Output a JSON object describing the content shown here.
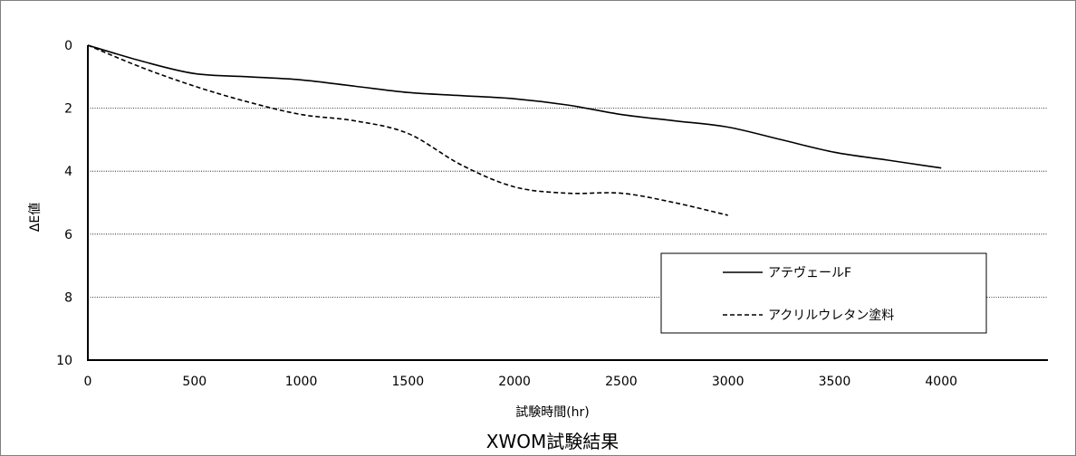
{
  "chart_data": {
    "type": "line",
    "title": "XWOM試験結果",
    "xlabel": "試験時間(hr)",
    "ylabel": "ΔE値",
    "xlim": [
      0,
      4500
    ],
    "ylim": [
      10,
      0
    ],
    "y_inverted": true,
    "x_ticks": [
      "0",
      "500",
      "1000",
      "1500",
      "2000",
      "2500",
      "3000",
      "3500",
      "4000"
    ],
    "y_ticks": [
      "0",
      "2",
      "4",
      "6",
      "8",
      "10"
    ],
    "grid": "horizontal-dotted",
    "legend_position": "lower-right",
    "series": [
      {
        "name": "アテヴェールF",
        "style": "solid",
        "x": [
          0,
          250,
          500,
          750,
          1000,
          1250,
          1500,
          1750,
          2000,
          2250,
          2500,
          2750,
          3000,
          3250,
          3500,
          3750,
          4000
        ],
        "y": [
          0,
          0.5,
          0.9,
          1.0,
          1.1,
          1.3,
          1.5,
          1.6,
          1.7,
          1.9,
          2.2,
          2.4,
          2.6,
          3.0,
          3.4,
          3.65,
          3.9
        ]
      },
      {
        "name": "アクリルウレタン塗料",
        "style": "dashed",
        "x": [
          0,
          250,
          500,
          750,
          1000,
          1250,
          1500,
          1750,
          2000,
          2250,
          2500,
          2750,
          3000
        ],
        "y": [
          0,
          0.7,
          1.3,
          1.8,
          2.2,
          2.4,
          2.8,
          3.8,
          4.5,
          4.7,
          4.7,
          5.0,
          5.4
        ]
      }
    ]
  }
}
